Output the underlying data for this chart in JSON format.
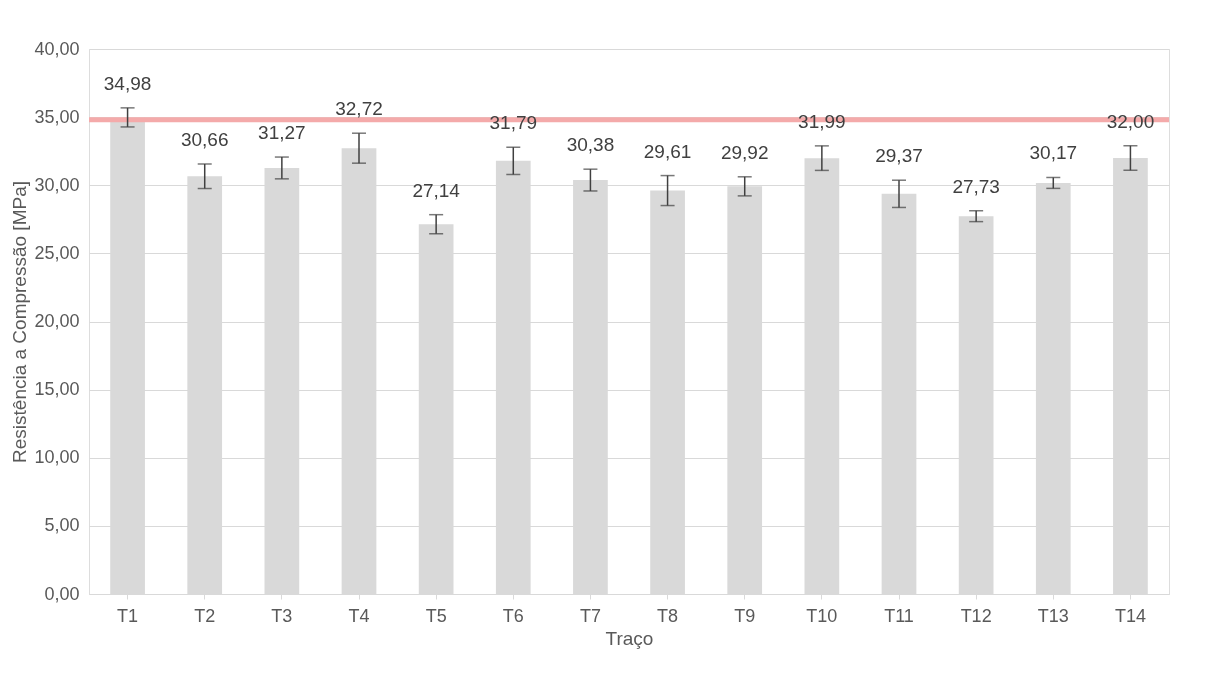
{
  "chart_data": {
    "type": "bar",
    "xlabel": "Traço",
    "ylabel": "Resistência a Compressão [MPa]",
    "categories": [
      "T1",
      "T2",
      "T3",
      "T4",
      "T5",
      "T6",
      "T7",
      "T8",
      "T9",
      "T10",
      "T11",
      "T12",
      "T13",
      "T14"
    ],
    "values": [
      34.98,
      30.66,
      31.27,
      32.72,
      27.14,
      31.79,
      30.38,
      29.61,
      29.92,
      31.99,
      29.37,
      27.73,
      30.17,
      32.0
    ],
    "value_labels": [
      "34,98",
      "30,66",
      "31,27",
      "32,72",
      "27,14",
      "31,79",
      "30,38",
      "29,61",
      "29,92",
      "31,99",
      "29,37",
      "27,73",
      "30,17",
      "32,00"
    ],
    "errors": [
      0.7,
      0.9,
      0.8,
      1.1,
      0.7,
      1.0,
      0.8,
      1.1,
      0.7,
      0.9,
      1.0,
      0.4,
      0.4,
      0.9
    ],
    "color": "#d9d9d9",
    "ylim": [
      0,
      40
    ],
    "yticks": [
      {
        "value": 0,
        "label": "0,00"
      },
      {
        "value": 5,
        "label": "5,00"
      },
      {
        "value": 10,
        "label": "10,00"
      },
      {
        "value": 15,
        "label": "15,00"
      },
      {
        "value": 20,
        "label": "20,00"
      },
      {
        "value": 25,
        "label": "25,00"
      },
      {
        "value": 30,
        "label": "30,00"
      },
      {
        "value": 35,
        "label": "35,00"
      },
      {
        "value": 40,
        "label": "40,00"
      }
    ],
    "ref_lines": [
      {
        "axis": "y",
        "value": 34.8,
        "color": "#f4aaaa"
      }
    ],
    "grid": "y"
  }
}
